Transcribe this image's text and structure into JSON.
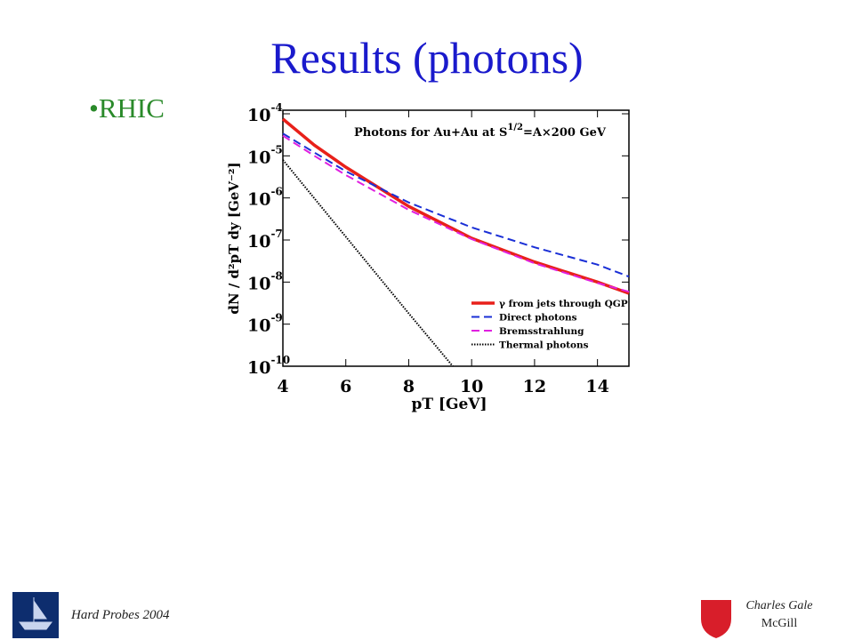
{
  "slide": {
    "title": "Results (photons)",
    "bullet": "•RHIC",
    "footer_left": "Hard Probes 2004",
    "footer_author": "Charles Gale",
    "footer_affiliation": "McGill"
  },
  "chart_data": {
    "type": "line",
    "title": {
      "main": "Photons for Au+Au at S",
      "sup": "1/2",
      "rest": "=A×200 GeV"
    },
    "x_label": "pT [GeV]",
    "y_label": "dN / d²pT dy [GeV⁻²]",
    "log_y": true,
    "xlim": [
      4,
      15
    ],
    "xticks": [
      4,
      6,
      8,
      10,
      12,
      14
    ],
    "ylim": [
      1e-10,
      0.0001
    ],
    "yticks": [
      {
        "value": 0.0001,
        "label": "10",
        "exponent": "-4"
      },
      {
        "value": 1e-05,
        "label": "10",
        "exponent": "-5"
      },
      {
        "value": 1e-06,
        "label": "10",
        "exponent": "-6"
      },
      {
        "value": 1e-07,
        "label": "10",
        "exponent": "-7"
      },
      {
        "value": 1e-08,
        "label": "10",
        "exponent": "-8"
      },
      {
        "value": 1e-09,
        "label": "10",
        "exponent": "-9"
      },
      {
        "value": 1e-10,
        "label": "10",
        "exponent": "-10"
      }
    ],
    "legend": "lower right",
    "series": [
      {
        "name": "γ from jets through QGP",
        "color": "#e8201a",
        "dash": "solid",
        "width": 3.5,
        "x": [
          4,
          5,
          6,
          8,
          10,
          12,
          14,
          15
        ],
        "values": [
          7.5e-05,
          1.8e-05,
          5.4e-06,
          6.3e-07,
          1.1e-07,
          3e-08,
          1e-08,
          5.4e-09
        ]
      },
      {
        "name": "Direct photons",
        "color": "#1a2fd6",
        "dash": "dashed",
        "width": 2,
        "x": [
          4,
          5,
          6,
          8,
          10,
          12,
          14,
          15
        ],
        "values": [
          3.4e-05,
          1.2e-05,
          4.3e-06,
          7.8e-07,
          2e-07,
          6.7e-08,
          2.6e-08,
          1.35e-08
        ]
      },
      {
        "name": "Bremsstrahlung",
        "color": "#e020e0",
        "dash": "dashed",
        "width": 2,
        "x": [
          4,
          5,
          6,
          8,
          10,
          12,
          14,
          15
        ],
        "values": [
          3e-05,
          1e-05,
          3.5e-06,
          5.2e-07,
          1.05e-07,
          2.8e-08,
          9.5e-09,
          5.9e-09
        ]
      },
      {
        "name": "Thermal photons",
        "color": "#000000",
        "dash": "dotted",
        "width": 2,
        "x": [
          4,
          6,
          8,
          9.4
        ],
        "values": [
          8e-06,
          1.2e-07,
          1.8e-09,
          1e-10
        ]
      }
    ]
  }
}
